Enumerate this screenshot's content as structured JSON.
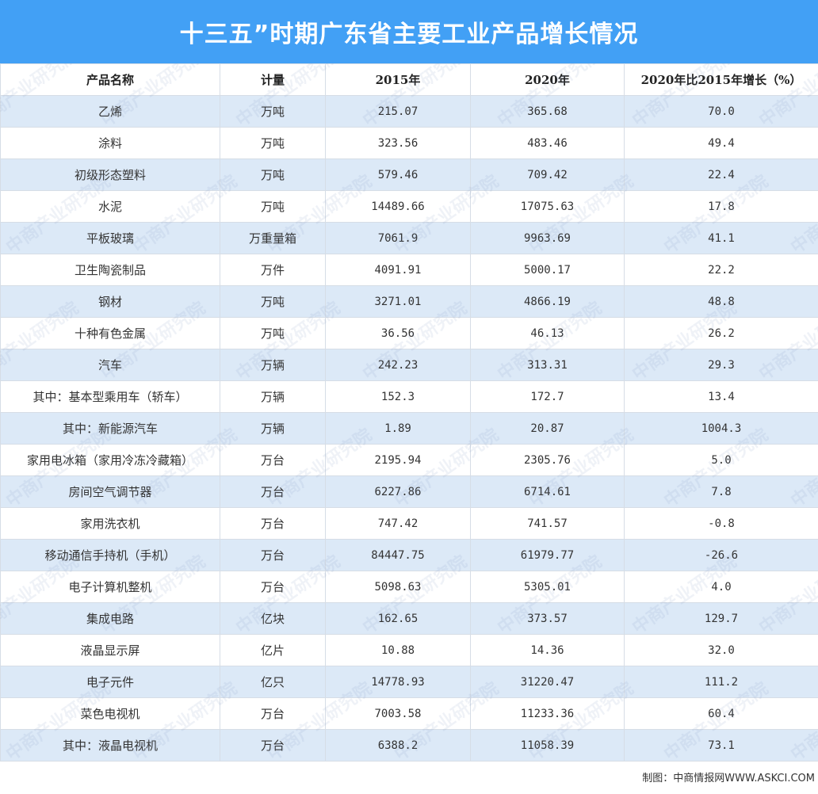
{
  "title": "十三五”时期广东省主要工业产品增长情况",
  "table": {
    "headers": [
      "产品名称",
      "计量",
      "2015年",
      "2020年",
      "2020年比2015年增长（%）"
    ],
    "rows": [
      [
        "乙烯",
        "万吨",
        "215.07",
        "365.68",
        "70.0"
      ],
      [
        "涂料",
        "万吨",
        "323.56",
        "483.46",
        "49.4"
      ],
      [
        "初级形态塑料",
        "万吨",
        "579.46",
        "709.42",
        "22.4"
      ],
      [
        "水泥",
        "万吨",
        "14489.66",
        "17075.63",
        "17.8"
      ],
      [
        "平板玻璃",
        "万重量箱",
        "7061.9",
        "9963.69",
        "41.1"
      ],
      [
        "卫生陶瓷制品",
        "万件",
        "4091.91",
        "5000.17",
        "22.2"
      ],
      [
        "钢材",
        "万吨",
        "3271.01",
        "4866.19",
        "48.8"
      ],
      [
        "十种有色金属",
        "万吨",
        "36.56",
        "46.13",
        "26.2"
      ],
      [
        "汽车",
        "万辆",
        "242.23",
        "313.31",
        "29.3"
      ],
      [
        "其中：基本型乘用车（轿车）",
        "万辆",
        "152.3",
        "172.7",
        "13.4"
      ],
      [
        "其中：新能源汽车",
        "万辆",
        "1.89",
        "20.87",
        "1004.3"
      ],
      [
        "家用电冰箱（家用冷冻冷藏箱）",
        "万台",
        "2195.94",
        "2305.76",
        "5.0"
      ],
      [
        "房间空气调节器",
        "万台",
        "6227.86",
        "6714.61",
        "7.8"
      ],
      [
        "家用洗衣机",
        "万台",
        "747.42",
        "741.57",
        "-0.8"
      ],
      [
        "移动通信手持机（手机）",
        "万台",
        "84447.75",
        "61979.77",
        "-26.6"
      ],
      [
        "电子计算机整机",
        "万台",
        "5098.63",
        "5305.01",
        "4.0"
      ],
      [
        "集成电路",
        "亿块",
        "162.65",
        "373.57",
        "129.7"
      ],
      [
        "液晶显示屏",
        "亿片",
        "10.88",
        "14.36",
        "32.0"
      ],
      [
        "电子元件",
        "亿只",
        "14778.93",
        "31220.47",
        "111.2"
      ],
      [
        "菜色电视机",
        "万台",
        "7003.58",
        "11233.36",
        "60.4"
      ],
      [
        "其中：液晶电视机",
        "万台",
        "6388.2",
        "11058.39",
        "73.1"
      ]
    ]
  },
  "footer": "制图：中商情报网WWW.ASKCI.COM",
  "watermark": "中商产业研究院",
  "colors": {
    "title_bg": "#42a0f5",
    "stripe": "#dce9f7",
    "border": "#d6dde6"
  }
}
